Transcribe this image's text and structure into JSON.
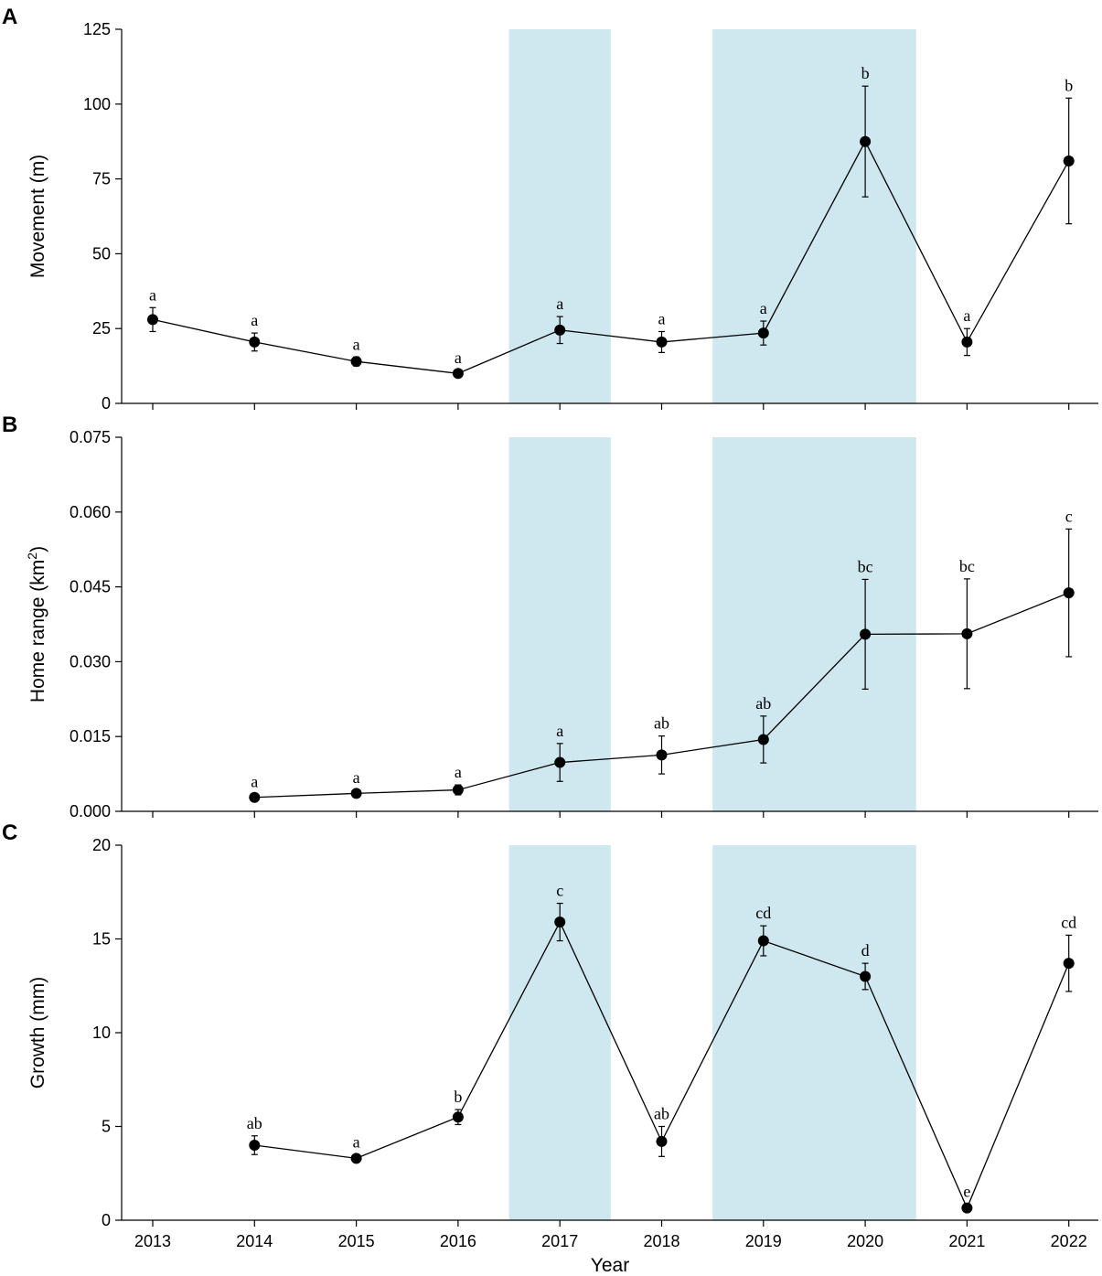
{
  "colors": {
    "shade": "#cfe7ef",
    "ink": "#000000"
  },
  "x_axis": {
    "categories": [
      "2013",
      "2014",
      "2015",
      "2016",
      "2017",
      "2018",
      "2019",
      "2020",
      "2021",
      "2022"
    ],
    "title": "Year"
  },
  "shaded_periods": [
    {
      "from": 2016.5,
      "to": 2017.5
    },
    {
      "from": 2018.5,
      "to": 2020.5
    }
  ],
  "chart_data": [
    {
      "type": "line",
      "panel": "A",
      "ylabel": "Movement (m)",
      "ylim": [
        0,
        125
      ],
      "yticks": [
        0,
        25,
        50,
        75,
        100,
        125
      ],
      "ytick_labels": [
        "0",
        "25",
        "50",
        "75",
        "100",
        "125"
      ],
      "points": [
        {
          "year": 2013,
          "value": 28,
          "err_low": 24,
          "err_high": 32,
          "label": "a"
        },
        {
          "year": 2014,
          "value": 20.5,
          "err_low": 17.5,
          "err_high": 23.5,
          "label": "a"
        },
        {
          "year": 2015,
          "value": 14,
          "err_low": 12.5,
          "err_high": 15.5,
          "label": "a"
        },
        {
          "year": 2016,
          "value": 10,
          "err_low": 9,
          "err_high": 11,
          "label": "a"
        },
        {
          "year": 2017,
          "value": 24.5,
          "err_low": 20,
          "err_high": 29,
          "label": "a"
        },
        {
          "year": 2018,
          "value": 20.5,
          "err_low": 17,
          "err_high": 24,
          "label": "a"
        },
        {
          "year": 2019,
          "value": 23.5,
          "err_low": 19.5,
          "err_high": 27.5,
          "label": "a"
        },
        {
          "year": 2020,
          "value": 87.5,
          "err_low": 69,
          "err_high": 106,
          "label": "b"
        },
        {
          "year": 2021,
          "value": 20.5,
          "err_low": 16,
          "err_high": 25,
          "label": "a"
        },
        {
          "year": 2022,
          "value": 81,
          "err_low": 60,
          "err_high": 102,
          "label": "b"
        }
      ]
    },
    {
      "type": "line",
      "panel": "B",
      "ylabel": "Home range (km",
      "ylabel_sup": "2",
      "ylabel_close": ")",
      "ylim": [
        0,
        0.075
      ],
      "yticks": [
        0,
        0.015,
        0.03,
        0.045,
        0.06,
        0.075
      ],
      "ytick_labels": [
        "0.000",
        "0.015",
        "0.030",
        "0.045",
        "0.060",
        "0.075"
      ],
      "points": [
        {
          "year": 2014,
          "value": 0.0028,
          "err_low": 0.0022,
          "err_high": 0.0034,
          "label": "a"
        },
        {
          "year": 2015,
          "value": 0.0036,
          "err_low": 0.003,
          "err_high": 0.0042,
          "label": "a"
        },
        {
          "year": 2016,
          "value": 0.0043,
          "err_low": 0.0033,
          "err_high": 0.0053,
          "label": "a"
        },
        {
          "year": 2017,
          "value": 0.0098,
          "err_low": 0.006,
          "err_high": 0.0136,
          "label": "a"
        },
        {
          "year": 2018,
          "value": 0.0113,
          "err_low": 0.0075,
          "err_high": 0.0151,
          "label": "ab"
        },
        {
          "year": 2019,
          "value": 0.0144,
          "err_low": 0.0097,
          "err_high": 0.0191,
          "label": "ab"
        },
        {
          "year": 2020,
          "value": 0.0355,
          "err_low": 0.0245,
          "err_high": 0.0465,
          "label": "bc"
        },
        {
          "year": 2021,
          "value": 0.0356,
          "err_low": 0.0246,
          "err_high": 0.0466,
          "label": "bc"
        },
        {
          "year": 2022,
          "value": 0.0438,
          "err_low": 0.031,
          "err_high": 0.0566,
          "label": "c"
        }
      ]
    },
    {
      "type": "line",
      "panel": "C",
      "ylabel": "Growth (mm)",
      "ylim": [
        0,
        20
      ],
      "yticks": [
        0,
        5,
        10,
        15,
        20
      ],
      "ytick_labels": [
        "0",
        "5",
        "10",
        "15",
        "20"
      ],
      "points": [
        {
          "year": 2014,
          "value": 4,
          "err_low": 3.5,
          "err_high": 4.5,
          "label": "ab"
        },
        {
          "year": 2015,
          "value": 3.3,
          "err_low": 3.1,
          "err_high": 3.5,
          "label": "a"
        },
        {
          "year": 2016,
          "value": 5.5,
          "err_low": 5.1,
          "err_high": 5.9,
          "label": "b"
        },
        {
          "year": 2017,
          "value": 15.9,
          "err_low": 14.9,
          "err_high": 16.9,
          "label": "c"
        },
        {
          "year": 2018,
          "value": 4.2,
          "err_low": 3.4,
          "err_high": 5,
          "label": "ab"
        },
        {
          "year": 2019,
          "value": 14.9,
          "err_low": 14.1,
          "err_high": 15.7,
          "label": "cd"
        },
        {
          "year": 2020,
          "value": 13,
          "err_low": 12.3,
          "err_high": 13.7,
          "label": "d"
        },
        {
          "year": 2021,
          "value": 0.65,
          "err_low": 0.45,
          "err_high": 0.85,
          "label": "e"
        },
        {
          "year": 2022,
          "value": 13.7,
          "err_low": 12.2,
          "err_high": 15.2,
          "label": "cd"
        }
      ]
    }
  ]
}
